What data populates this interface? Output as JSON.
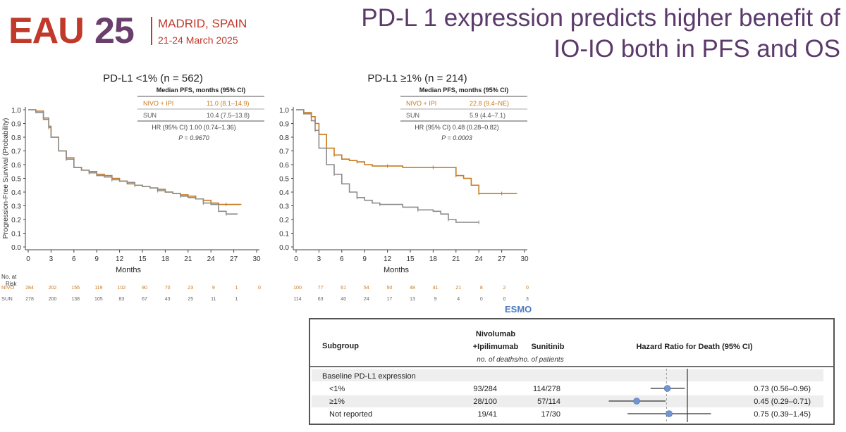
{
  "header": {
    "logo_text_left": "EAU",
    "logo_text_right": "25",
    "location": "MADRID, SPAIN",
    "dates": "21-24 March 2025",
    "title_line1": "PD-L 1 expression predicts higher benefit of",
    "title_line2": "IO-IO both in PFS and OS"
  },
  "colors": {
    "nivo": "#c77a1e",
    "sun": "#8c8c8c",
    "title": "#5b3a6b",
    "logo_red": "#c0392b",
    "logo_purple": "#6b3f6b",
    "marker": "#7096d1"
  },
  "watermark": "ESMO",
  "chart_data": [
    {
      "type": "line",
      "title": "PD-L1 <1% (n = 562)",
      "ylabel": "Progression-Free Survival (Probability)",
      "xlabel": "Months",
      "xlim": [
        0,
        30
      ],
      "ylim": [
        0,
        1
      ],
      "xticks": [
        "0",
        "3",
        "6",
        "9",
        "12",
        "15",
        "18",
        "21",
        "24",
        "27",
        "30"
      ],
      "yticks": [
        "0.0",
        "0.1",
        "0.2",
        "0.3",
        "0.4",
        "0.5",
        "0.6",
        "0.7",
        "0.8",
        "0.9",
        "1.0"
      ],
      "stats": {
        "header": "Median PFS, months (95% CI)",
        "nivo_label": "NIVO + IPI",
        "nivo_value": "11.0 (8.1–14.9)",
        "sun_label": "SUN",
        "sun_value": "10.4 (7.5–13.8)",
        "hr": "HR (95% CI) 1.00 (0.74–1.36)",
        "p": "P = 0.9670"
      },
      "series": [
        {
          "name": "NIVO + IPI",
          "x": [
            0,
            1,
            2,
            2.7,
            3,
            4,
            5,
            6,
            7,
            8,
            9,
            10,
            11,
            12,
            13,
            14,
            15,
            16,
            17,
            18,
            19,
            20,
            21,
            22,
            23,
            24,
            25,
            26,
            27,
            28
          ],
          "y": [
            1.0,
            0.99,
            0.93,
            0.87,
            0.8,
            0.7,
            0.65,
            0.58,
            0.56,
            0.55,
            0.53,
            0.52,
            0.5,
            0.48,
            0.46,
            0.45,
            0.44,
            0.43,
            0.42,
            0.4,
            0.39,
            0.38,
            0.37,
            0.35,
            0.34,
            0.32,
            0.31,
            0.31,
            0.31,
            0.31
          ]
        },
        {
          "name": "SUN",
          "x": [
            0,
            1,
            2,
            2.7,
            3,
            4,
            5,
            6,
            7,
            8,
            9,
            10,
            11,
            12,
            13,
            14,
            15,
            16,
            17,
            18,
            19,
            20,
            21,
            22,
            23,
            24,
            25,
            26,
            27,
            27.5
          ],
          "y": [
            1.0,
            0.98,
            0.94,
            0.88,
            0.8,
            0.7,
            0.64,
            0.58,
            0.56,
            0.54,
            0.52,
            0.51,
            0.49,
            0.48,
            0.47,
            0.45,
            0.44,
            0.43,
            0.41,
            0.4,
            0.39,
            0.37,
            0.36,
            0.35,
            0.32,
            0.31,
            0.26,
            0.24,
            0.24,
            0.24
          ]
        }
      ],
      "risk": {
        "header1": "No. at",
        "header2": "Risk",
        "rows": [
          {
            "label": "NIVO",
            "values": [
              "284",
              "202",
              "155",
              "119",
              "102",
              "90",
              "70",
              "23",
              "9",
              "1",
              "0"
            ]
          },
          {
            "label": "SUN",
            "values": [
              "278",
              "200",
              "138",
              "105",
              "83",
              "67",
              "43",
              "25",
              "11",
              "1",
              ""
            ]
          }
        ]
      }
    },
    {
      "type": "line",
      "title": "PD-L1 ≥1% (n = 214)",
      "xlabel": "Months",
      "xlim": [
        0,
        30
      ],
      "ylim": [
        0,
        1
      ],
      "xticks": [
        "0",
        "3",
        "6",
        "9",
        "12",
        "15",
        "18",
        "21",
        "24",
        "27",
        "30"
      ],
      "yticks": [
        "0.0",
        "0.1",
        "0.2",
        "0.3",
        "0.4",
        "0.5",
        "0.6",
        "0.7",
        "0.8",
        "0.9",
        "1.0"
      ],
      "stats": {
        "header": "Median PFS, months (95% CI)",
        "nivo_label": "NIVO + IPI",
        "nivo_value": "22.8 (9.4–NE)",
        "sun_label": "SUN",
        "sun_value": "5.9 (4.4–7.1)",
        "hr": "HR (95% CI) 0.48 (0.28–0.82)",
        "p": "P = 0.0003"
      },
      "series": [
        {
          "name": "NIVO + IPI",
          "x": [
            0,
            1,
            2,
            2.5,
            3,
            4,
            5,
            6,
            7,
            8,
            9,
            10,
            12,
            14,
            16,
            18,
            19,
            20,
            21,
            22,
            23,
            24,
            25,
            26,
            27,
            28,
            29
          ],
          "y": [
            1.0,
            0.98,
            0.95,
            0.9,
            0.82,
            0.72,
            0.67,
            0.64,
            0.63,
            0.62,
            0.6,
            0.59,
            0.59,
            0.58,
            0.58,
            0.58,
            0.58,
            0.58,
            0.52,
            0.5,
            0.45,
            0.39,
            0.39,
            0.39,
            0.39,
            0.39,
            0.39
          ]
        },
        {
          "name": "SUN",
          "x": [
            0,
            1,
            2,
            2.5,
            3,
            4,
            5,
            6,
            7,
            8,
            9,
            10,
            11,
            12,
            14,
            16,
            18,
            19,
            20,
            21,
            22,
            24
          ],
          "y": [
            1.0,
            0.97,
            0.92,
            0.85,
            0.72,
            0.6,
            0.53,
            0.46,
            0.4,
            0.36,
            0.34,
            0.32,
            0.31,
            0.31,
            0.29,
            0.27,
            0.26,
            0.24,
            0.2,
            0.18,
            0.18,
            0.18
          ]
        }
      ],
      "risk": {
        "rows": [
          {
            "label": "",
            "values": [
              "100",
              "77",
              "61",
              "54",
              "50",
              "48",
              "41",
              "21",
              "8",
              "2",
              "0"
            ]
          },
          {
            "label": "",
            "values": [
              "114",
              "63",
              "40",
              "24",
              "17",
              "13",
              "9",
              "4",
              "0",
              "0",
              "3"
            ]
          }
        ]
      }
    },
    {
      "type": "forest",
      "headers": {
        "subgroup": "Subgroup",
        "nivo_line1": "Nivolumab",
        "nivo_line2": "+Ipilimumab",
        "sun": "Sunitinib",
        "hr": "Hazard Ratio for Death (95% CI)",
        "sub": "no. of deaths/no. of patients"
      },
      "group_label": "Baseline PD-L1 expression",
      "rows": [
        {
          "label": "<1%",
          "nivo": "93/284",
          "sun": "114/278",
          "hr": 0.73,
          "lo": 0.56,
          "hi": 0.96,
          "text": "0.73 (0.56–0.96)"
        },
        {
          "label": "≥1%",
          "nivo": "28/100",
          "sun": "57/114",
          "hr": 0.45,
          "lo": 0.29,
          "hi": 0.71,
          "text": "0.45 (0.29–0.71)"
        },
        {
          "label": "Not reported",
          "nivo": "19/41",
          "sun": "17/30",
          "hr": 0.75,
          "lo": 0.39,
          "hi": 1.45,
          "text": "0.75 (0.39–1.45)"
        }
      ]
    }
  ]
}
